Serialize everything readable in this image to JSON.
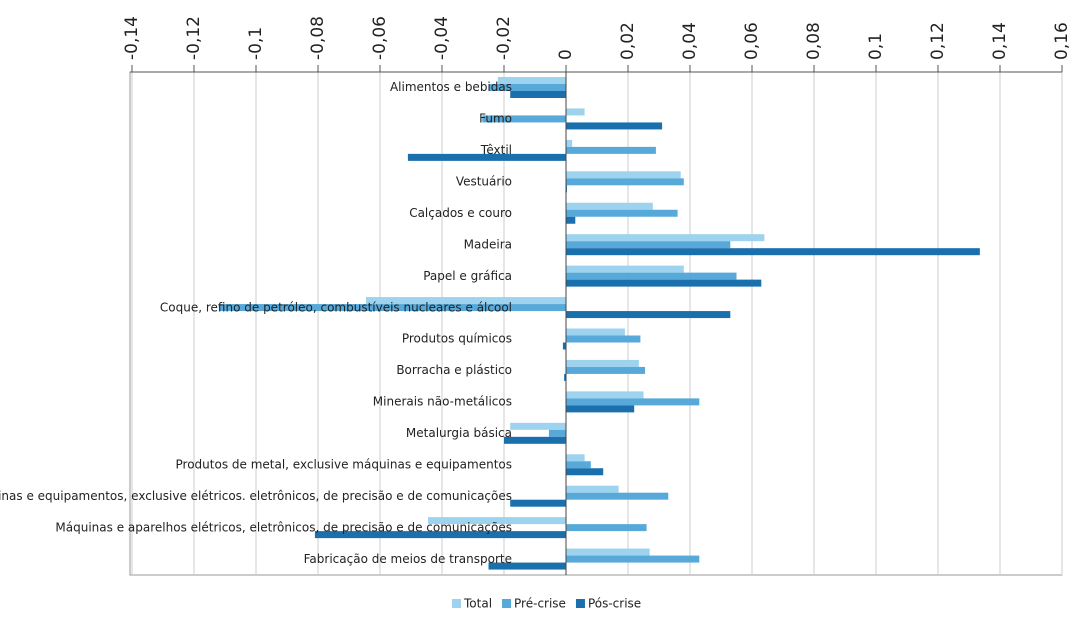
{
  "chart_data": {
    "type": "bar",
    "orientation": "horizontal",
    "categories": [
      "Alimentos e bebidas",
      "Fumo",
      "Têxtil",
      "Vestuário",
      "Calçados e couro",
      "Madeira",
      "Papel e gráfica",
      "Coque, refino de petróleo, combustíveis nucleares e álcool",
      "Produtos químicos",
      "Borracha e plástico",
      "Minerais não-metálicos",
      "Metalurgia básica",
      "Produtos de metal, exclusive máquinas e equipamentos",
      "Máquinas e equipamentos, exclusive elétricos. eletrônicos, de precisão e de comunicações",
      "Máquinas e aparelhos elétricos, eletrônicos, de precisão e de comunicações",
      "Fabricação de meios de transporte"
    ],
    "series": [
      {
        "name": "Total",
        "color": "#9dd3ef",
        "values": [
          -0.022,
          0.006,
          0.002,
          0.037,
          0.028,
          0.064,
          0.038,
          -0.0645,
          0.019,
          0.0235,
          0.025,
          -0.018,
          0.006,
          0.017,
          -0.0445,
          0.027
        ]
      },
      {
        "name": "Pré-crise",
        "color": "#57a9d9",
        "values": [
          -0.025,
          -0.027,
          0.029,
          0.038,
          0.036,
          0.053,
          0.055,
          -0.112,
          0.024,
          0.0255,
          0.043,
          -0.0055,
          0.008,
          0.033,
          0.026,
          0.043
        ]
      },
      {
        "name": "Pós-crise",
        "color": "#1a6fad",
        "values": [
          -0.018,
          0.031,
          -0.051,
          0.0003,
          0.003,
          0.1335,
          0.063,
          0.053,
          -0.001,
          -0.0006,
          0.022,
          -0.02,
          0.012,
          -0.018,
          -0.081,
          -0.025
        ]
      }
    ],
    "xlim": [
      -0.14,
      0.16
    ],
    "xticks": [
      {
        "value": -0.14,
        "label": "-0,14"
      },
      {
        "value": -0.12,
        "label": "-0,12"
      },
      {
        "value": -0.1,
        "label": "-0,1"
      },
      {
        "value": -0.08,
        "label": "-0,08"
      },
      {
        "value": -0.06,
        "label": "-0,06"
      },
      {
        "value": -0.04,
        "label": "-0,04"
      },
      {
        "value": -0.02,
        "label": "-0,02"
      },
      0,
      {
        "value": 0.02,
        "label": "0,02"
      },
      {
        "value": 0.04,
        "label": "0,04"
      },
      {
        "value": 0.06,
        "label": "0,06"
      },
      {
        "value": 0.08,
        "label": "0,08"
      },
      {
        "value": 0.1,
        "label": "0,1"
      },
      {
        "value": 0.12,
        "label": "0,12"
      },
      {
        "value": 0.14,
        "label": "0,14"
      },
      {
        "value": 0.16,
        "label": "0,16"
      }
    ],
    "grid": true,
    "legend": "bottom"
  }
}
